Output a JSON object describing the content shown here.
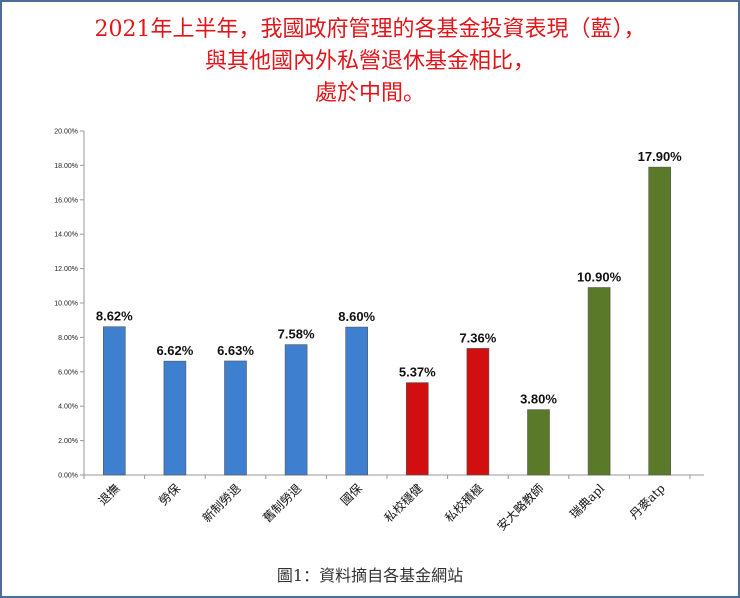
{
  "title_lines": [
    "2021年上半年，我國政府管理的各基金投資表現（藍），",
    "與其他國內外私營退休基金相比，",
    "處於中間。"
  ],
  "caption": "圖1：資料摘自各基金網站",
  "chart_data": {
    "type": "bar",
    "categories": [
      "退撫",
      "勞保",
      "新制勞退",
      "舊制勞退",
      "國保",
      "私校穩健",
      "私校積極",
      "安大略教師",
      "瑞典apl",
      "丹麥atp"
    ],
    "values": [
      8.62,
      6.62,
      6.63,
      7.58,
      8.6,
      5.37,
      7.36,
      3.8,
      10.9,
      17.9
    ],
    "data_labels": [
      "8.62%",
      "6.62%",
      "6.63%",
      "7.58%",
      "8.60%",
      "5.37%",
      "7.36%",
      "3.80%",
      "10.90%",
      "17.90%"
    ],
    "colors": [
      "#3f7fcf",
      "#3f7fcf",
      "#3f7fcf",
      "#3f7fcf",
      "#3f7fcf",
      "#d10f10",
      "#d10f10",
      "#5a7a2a",
      "#5a7a2a",
      "#5a7a2a"
    ],
    "ylim": [
      0,
      20
    ],
    "yticks": [
      "0.00%",
      "2.00%",
      "4.00%",
      "6.00%",
      "8.00%",
      "10.00%",
      "12.00%",
      "14.00%",
      "16.00%",
      "18.00%",
      "20.00%"
    ],
    "grid": false,
    "legend": "none"
  }
}
